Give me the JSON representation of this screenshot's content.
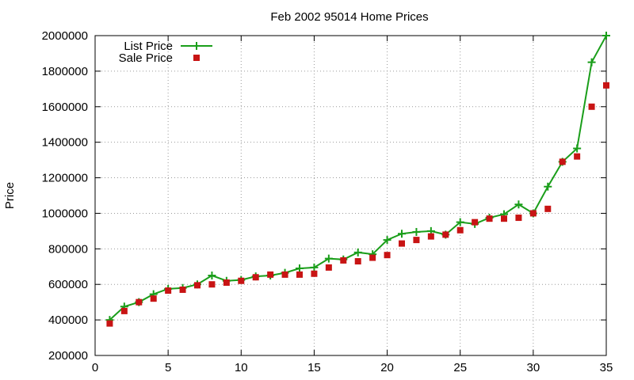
{
  "chart_data": {
    "type": "line",
    "title": "Feb 2002 95014 Home Prices",
    "xlabel": "",
    "ylabel": "Price",
    "xlim": [
      0,
      35
    ],
    "ylim": [
      200000,
      2000000
    ],
    "x_ticks": [
      0,
      5,
      10,
      15,
      20,
      25,
      30,
      35
    ],
    "y_ticks": [
      200000,
      400000,
      600000,
      800000,
      1000000,
      1200000,
      1400000,
      1600000,
      1800000,
      2000000
    ],
    "grid": true,
    "legend_position": "top-left",
    "series": [
      {
        "name": "List Price",
        "color": "#1a9e1a",
        "marker": "plus",
        "x": [
          1,
          2,
          3,
          4,
          5,
          6,
          7,
          8,
          9,
          10,
          11,
          12,
          13,
          14,
          15,
          16,
          17,
          18,
          19,
          20,
          21,
          22,
          23,
          24,
          25,
          26,
          27,
          28,
          29,
          30,
          31,
          32,
          33,
          34,
          35
        ],
        "values": [
          400000,
          475000,
          500000,
          545000,
          575000,
          580000,
          600000,
          650000,
          620000,
          625000,
          645000,
          650000,
          665000,
          690000,
          695000,
          745000,
          740000,
          780000,
          770000,
          850000,
          885000,
          895000,
          900000,
          880000,
          950000,
          940000,
          975000,
          995000,
          1050000,
          1000000,
          1150000,
          1290000,
          1365000,
          1850000,
          2000000
        ]
      },
      {
        "name": "Sale Price",
        "color": "#c81414",
        "marker": "square",
        "x": [
          1,
          2,
          3,
          4,
          5,
          6,
          7,
          8,
          9,
          10,
          11,
          12,
          13,
          14,
          15,
          16,
          17,
          18,
          19,
          20,
          21,
          22,
          23,
          24,
          25,
          26,
          27,
          28,
          29,
          30,
          31,
          32,
          33,
          34,
          35
        ],
        "values": [
          380000,
          450000,
          500000,
          520000,
          565000,
          570000,
          595000,
          600000,
          610000,
          620000,
          640000,
          655000,
          655000,
          655000,
          660000,
          695000,
          735000,
          730000,
          750000,
          765000,
          830000,
          850000,
          870000,
          880000,
          905000,
          950000,
          970000,
          970000,
          975000,
          1000000,
          1025000,
          1290000,
          1320000,
          1600000,
          1720000
        ]
      }
    ]
  }
}
